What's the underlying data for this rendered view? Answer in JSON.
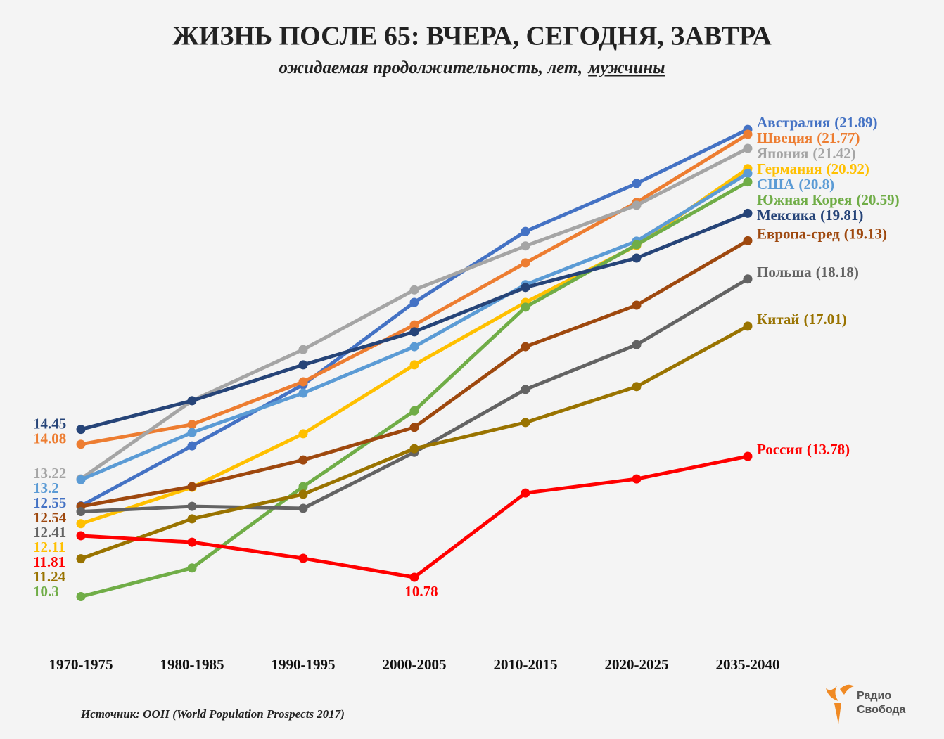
{
  "chart_data": {
    "type": "line",
    "title": "ЖИЗНЬ ПОСЛЕ 65: ВЧЕРА, СЕГОДНЯ, ЗАВТРА",
    "subtitle": "ожидаемая продолжительность, лет,",
    "subtitle_emphasis": "мужчины",
    "source": "Источник: ООН (World Population Prospects 2017)",
    "logo": [
      "Радио",
      "Свобода"
    ],
    "categories": [
      "1970-1975",
      "1980-1985",
      "1990-1995",
      "2000-2005",
      "2010-2015",
      "2020-2025",
      "2035-2040"
    ],
    "ylim": [
      10,
      22
    ],
    "series": [
      {
        "name": "Австралия",
        "color": "#4472c4",
        "values": [
          12.55,
          14.04,
          15.56,
          17.6,
          19.36,
          20.55,
          21.89
        ],
        "value_labels": [
          "12.55",
          null,
          null,
          null,
          null,
          null,
          "(21.89)"
        ]
      },
      {
        "name": "Швеция",
        "color": "#ed7d31",
        "values": [
          14.08,
          14.57,
          15.63,
          17.04,
          18.58,
          20.08,
          21.77
        ],
        "value_labels": [
          "14.08",
          null,
          null,
          null,
          null,
          null,
          "(21.77)"
        ]
      },
      {
        "name": "Япония",
        "color": "#a5a5a5",
        "values": [
          13.22,
          15.16,
          16.43,
          17.91,
          19.0,
          20.01,
          21.42
        ],
        "value_labels": [
          "13.22",
          null,
          null,
          null,
          null,
          null,
          "(21.42)"
        ]
      },
      {
        "name": "Германия",
        "color": "#ffc000",
        "values": [
          12.11,
          13.01,
          14.34,
          16.05,
          17.6,
          19.01,
          20.92
        ],
        "value_labels": [
          "12.11",
          null,
          null,
          null,
          null,
          null,
          "(20.92)"
        ]
      },
      {
        "name": "США",
        "color": "#5b9bd5",
        "values": [
          13.2,
          14.37,
          15.35,
          16.5,
          18.04,
          19.12,
          20.8
        ],
        "value_labels": [
          "13.2",
          null,
          null,
          null,
          null,
          null,
          "(20.8)"
        ]
      },
      {
        "name": "Южная Корея",
        "color": "#70ad47",
        "values": [
          10.3,
          11.01,
          13.03,
          14.91,
          17.48,
          19.03,
          20.59
        ],
        "value_labels": [
          "10.3",
          null,
          null,
          null,
          null,
          null,
          "(20.59)"
        ]
      },
      {
        "name": "Мексика",
        "color": "#264478",
        "values": [
          14.45,
          15.16,
          16.05,
          16.87,
          17.97,
          18.7,
          19.81
        ],
        "value_labels": [
          "14.45",
          null,
          null,
          null,
          null,
          null,
          "(19.81)"
        ]
      },
      {
        "name": "Европа-сред",
        "color": "#9e480e",
        "values": [
          12.54,
          13.03,
          13.69,
          14.5,
          16.5,
          17.53,
          19.13
        ],
        "value_labels": [
          "12.54",
          null,
          null,
          null,
          null,
          null,
          "(19.13)"
        ]
      },
      {
        "name": "Польша",
        "color": "#636363",
        "values": [
          12.41,
          12.54,
          12.49,
          13.88,
          15.44,
          16.55,
          18.18
        ],
        "value_labels": [
          "12.41",
          null,
          null,
          null,
          null,
          null,
          "(18.18)"
        ]
      },
      {
        "name": "Китай",
        "color": "#997300",
        "values": [
          11.24,
          12.23,
          12.84,
          13.97,
          14.62,
          15.51,
          17.01
        ],
        "value_labels": [
          "11.24",
          null,
          null,
          null,
          null,
          null,
          "(17.01)"
        ]
      },
      {
        "name": "Россия",
        "color": "#ff0000",
        "values": [
          11.81,
          11.65,
          11.25,
          10.78,
          12.87,
          13.22,
          13.78
        ],
        "value_labels": [
          "11.81",
          null,
          null,
          "10.78",
          null,
          null,
          "(13.78)"
        ]
      }
    ]
  }
}
